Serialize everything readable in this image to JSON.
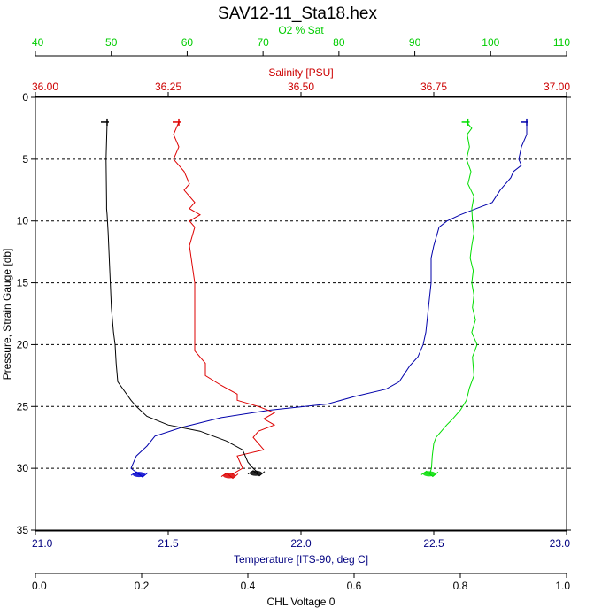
{
  "chart_data": {
    "type": "line",
    "title": "SAV12-11_Sta18.hex",
    "ylabel": "Pressure, Strain Gauge [db]",
    "ylim": [
      0,
      35
    ],
    "yticks": [
      "0",
      "5",
      "10",
      "15",
      "20",
      "25",
      "30",
      "35"
    ],
    "yticks_values": [
      0,
      5,
      10,
      15,
      20,
      25,
      30,
      35
    ],
    "dashed_grid_y": [
      5,
      10,
      15,
      20,
      25,
      30
    ],
    "axes": [
      {
        "id": "o2",
        "position": "top",
        "label": "O2 % Sat",
        "color": "#00dd00",
        "range": [
          40,
          110
        ],
        "ticks": [
          "40",
          "50",
          "60",
          "70",
          "80",
          "90",
          "100",
          "110"
        ],
        "tick_values": [
          40,
          50,
          60,
          70,
          80,
          90,
          100,
          110
        ]
      },
      {
        "id": "sal",
        "position": "top",
        "label": "Salinity [PSU]",
        "color": "#cc0000",
        "range": [
          36.0,
          37.0
        ],
        "ticks": [
          "36.00",
          "36.25",
          "36.50",
          "36.75",
          "37.00"
        ],
        "tick_values": [
          36.0,
          36.25,
          36.5,
          36.75,
          37.0
        ]
      },
      {
        "id": "temp",
        "position": "bottom",
        "label": "Temperature [ITS-90, deg C]",
        "color": "#000080",
        "range": [
          21.0,
          23.0
        ],
        "ticks": [
          "21.0",
          "21.5",
          "22.0",
          "22.5",
          "23.0"
        ],
        "tick_values": [
          21.0,
          21.5,
          22.0,
          22.5,
          23.0
        ]
      },
      {
        "id": "chl",
        "position": "bottom",
        "label": "CHL Voltage 0",
        "color": "#000000",
        "range": [
          0.0,
          1.0
        ],
        "ticks": [
          "0.0",
          "0.2",
          "0.4",
          "0.6",
          "0.8",
          "1.0"
        ],
        "tick_values": [
          0.0,
          0.2,
          0.4,
          0.6,
          0.8,
          1.0
        ]
      }
    ],
    "series": [
      {
        "axis": "temp",
        "color": "#0000aa",
        "x": [
          22.85,
          22.85,
          22.83,
          22.82,
          22.83,
          22.8,
          22.79,
          22.77,
          22.75,
          22.72,
          22.66,
          22.6,
          22.55,
          22.52,
          22.5,
          22.49,
          22.49,
          22.48,
          22.47,
          22.46,
          22.44,
          22.41,
          22.37,
          22.32,
          22.2,
          22.1,
          21.88,
          21.7,
          21.55,
          21.45,
          21.42,
          21.38,
          21.36,
          21.39
        ],
        "y": [
          2.0,
          3.0,
          4.0,
          5.0,
          5.5,
          6.0,
          6.5,
          7.0,
          7.5,
          8.5,
          9.0,
          9.5,
          10.0,
          10.5,
          12.0,
          13.0,
          15.0,
          17.0,
          19.0,
          20.0,
          21.0,
          21.7,
          23.0,
          23.6,
          24.2,
          24.8,
          25.3,
          25.9,
          26.7,
          27.4,
          28.2,
          29.0,
          30.0,
          30.5
        ]
      },
      {
        "axis": "sal",
        "color": "#dd0000",
        "x": [
          36.27,
          36.26,
          36.27,
          36.26,
          36.27,
          36.28,
          36.29,
          36.28,
          36.3,
          36.29,
          36.31,
          36.29,
          36.3,
          36.29,
          36.3,
          36.3,
          36.3,
          36.3,
          36.31,
          36.32,
          36.32,
          36.35,
          36.38,
          36.38,
          36.42,
          36.45,
          36.43,
          36.45,
          36.42,
          36.41,
          36.42,
          36.43,
          36.38,
          36.39,
          36.37
        ],
        "y": [
          2.0,
          3.0,
          4.0,
          5.0,
          5.5,
          6.0,
          7.0,
          7.5,
          8.5,
          9.0,
          9.5,
          10.0,
          10.5,
          12.0,
          15.0,
          17.5,
          19.5,
          20.5,
          21.0,
          21.5,
          22.5,
          23.3,
          24.0,
          24.5,
          25.0,
          25.5,
          26.0,
          26.5,
          27.0,
          27.5,
          28.0,
          28.5,
          29.0,
          30.0,
          30.5
        ]
      },
      {
        "axis": "chl",
        "color": "#000000",
        "x": [
          0.135,
          0.133,
          0.134,
          0.134,
          0.135,
          0.137,
          0.14,
          0.143,
          0.147,
          0.15,
          0.152,
          0.155,
          0.16,
          0.18,
          0.19,
          0.21,
          0.25,
          0.31,
          0.36,
          0.39,
          0.4,
          0.41,
          0.42
        ],
        "y": [
          2.0,
          5.0,
          8.5,
          9.0,
          9.5,
          11.0,
          14.0,
          17.0,
          19.0,
          20.0,
          21.5,
          23.0,
          23.3,
          24.5,
          25.0,
          25.8,
          26.5,
          27.0,
          27.8,
          28.5,
          29.5,
          30.0,
          30.4
        ]
      },
      {
        "axis": "o2",
        "color": "#00dd00",
        "x": [
          96.8,
          97.5,
          96.9,
          97.2,
          96.8,
          97.4,
          97.0,
          97.8,
          97.5,
          97.6,
          97.8,
          97.5,
          97.3,
          97.7,
          97.5,
          97.8,
          97.6,
          98.0,
          97.5,
          98.2,
          97.6,
          97.8,
          97.2,
          96.8,
          96.0,
          95.0,
          94.2,
          93.5,
          92.8,
          92.5,
          92.3,
          92.2,
          92.0
        ],
        "y": [
          2.0,
          2.5,
          3.0,
          4.0,
          5.0,
          6.0,
          7.0,
          8.0,
          9.0,
          10.0,
          11.0,
          12.0,
          13.0,
          14.0,
          15.0,
          16.0,
          17.0,
          18.0,
          19.0,
          20.0,
          21.0,
          22.5,
          23.5,
          24.5,
          25.3,
          26.0,
          26.5,
          27.0,
          27.5,
          28.0,
          29.0,
          30.0,
          30.4
        ]
      }
    ],
    "clusters": [
      {
        "axis": "temp",
        "color": "#0000cc",
        "x": 21.39,
        "y": 30.5
      },
      {
        "axis": "sal",
        "color": "#dd0000",
        "x": 36.365,
        "y": 30.6
      },
      {
        "axis": "chl",
        "color": "#000000",
        "x": 0.415,
        "y": 30.4
      },
      {
        "axis": "o2",
        "color": "#00dd00",
        "x": 91.9,
        "y": 30.45
      }
    ],
    "start_marks": [
      {
        "axis": "temp",
        "color": "#0000aa",
        "x": 22.85,
        "y": 2.0
      },
      {
        "axis": "sal",
        "color": "#dd0000",
        "x": 36.27,
        "y": 2.0
      },
      {
        "axis": "chl",
        "color": "#000000",
        "x": 0.135,
        "y": 2.0
      },
      {
        "axis": "o2",
        "color": "#00dd00",
        "x": 97.0,
        "y": 2.0
      }
    ]
  }
}
